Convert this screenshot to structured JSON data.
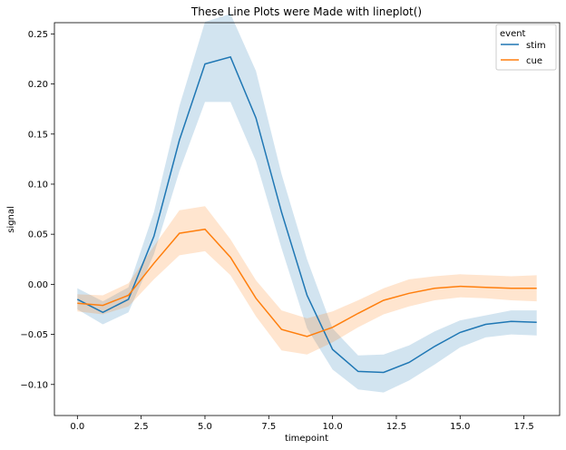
{
  "chart_data": {
    "type": "line",
    "title": "These Line Plots were Made with lineplot()",
    "xlabel": "timepoint",
    "ylabel": "signal",
    "xlim": [
      -0.9,
      18.9
    ],
    "ylim": [
      -0.131,
      0.2612
    ],
    "xticks": [
      0.0,
      2.5,
      5.0,
      7.5,
      10.0,
      12.5,
      15.0,
      17.5
    ],
    "xtick_labels": [
      "0.0",
      "2.5",
      "5.0",
      "7.5",
      "10.0",
      "12.5",
      "15.0",
      "17.5"
    ],
    "yticks": [
      -0.1,
      -0.05,
      0.0,
      0.05,
      0.1,
      0.15,
      0.2,
      0.25
    ],
    "ytick_labels": [
      "−0.10",
      "−0.05",
      "0.00",
      "0.05",
      "0.10",
      "0.15",
      "0.20",
      "0.25"
    ],
    "grid": false,
    "legend": {
      "title": "event",
      "placement": "top-right"
    },
    "x": [
      0,
      1,
      2,
      3,
      4,
      5,
      6,
      7,
      8,
      9,
      10,
      11,
      12,
      13,
      14,
      15,
      16,
      17,
      18
    ],
    "series": [
      {
        "name": "stim",
        "color": "#1f77b4",
        "values": [
          -0.015,
          -0.028,
          -0.015,
          0.048,
          0.144,
          0.22,
          0.227,
          0.166,
          0.072,
          -0.011,
          -0.065,
          -0.087,
          -0.088,
          -0.078,
          -0.062,
          -0.048,
          -0.04,
          -0.037,
          -0.038
        ],
        "ci_low": [
          -0.025,
          -0.04,
          -0.028,
          0.03,
          0.113,
          0.182,
          0.182,
          0.123,
          0.036,
          -0.044,
          -0.085,
          -0.105,
          -0.108,
          -0.096,
          -0.08,
          -0.063,
          -0.053,
          -0.05,
          -0.051
        ],
        "ci_high": [
          -0.004,
          -0.017,
          -0.003,
          0.072,
          0.178,
          0.262,
          0.27,
          0.213,
          0.11,
          0.025,
          -0.044,
          -0.071,
          -0.07,
          -0.061,
          -0.047,
          -0.036,
          -0.031,
          -0.026,
          -0.026
        ]
      },
      {
        "name": "cue",
        "color": "#ff7f0e",
        "values": [
          -0.019,
          -0.021,
          -0.011,
          0.021,
          0.051,
          0.055,
          0.027,
          -0.014,
          -0.045,
          -0.052,
          -0.043,
          -0.029,
          -0.016,
          -0.009,
          -0.004,
          -0.002,
          -0.003,
          -0.004,
          -0.004
        ],
        "ci_low": [
          -0.027,
          -0.03,
          -0.022,
          0.005,
          0.029,
          0.033,
          0.009,
          -0.032,
          -0.066,
          -0.07,
          -0.058,
          -0.043,
          -0.03,
          -0.022,
          -0.016,
          -0.013,
          -0.014,
          -0.016,
          -0.017
        ],
        "ci_high": [
          -0.01,
          -0.011,
          0.001,
          0.038,
          0.074,
          0.078,
          0.045,
          0.004,
          -0.026,
          -0.034,
          -0.027,
          -0.016,
          -0.004,
          0.005,
          0.008,
          0.01,
          0.009,
          0.008,
          0.009
        ]
      }
    ]
  }
}
